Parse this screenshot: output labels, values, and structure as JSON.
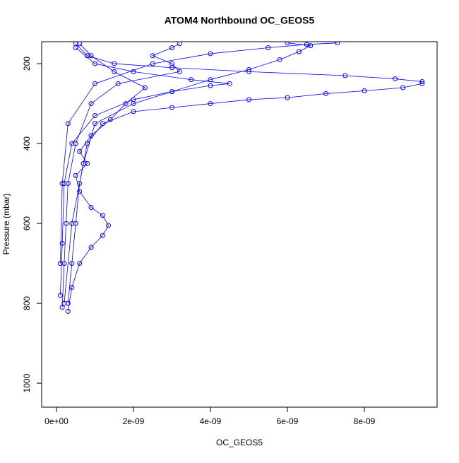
{
  "chart_data": {
    "type": "line",
    "title": "ATOM4 Northbound OC_GEOS5",
    "x_label": "OC_GEOS5",
    "y_label": "Pressure (mbar)",
    "xlim": [
      -3.85e-10,
      9.89e-09
    ],
    "ylim": [
      1060,
      145
    ],
    "xticks": [
      {
        "value": 0,
        "label": "0e+00"
      },
      {
        "value": 2e-09,
        "label": "2e-09"
      },
      {
        "value": 4e-09,
        "label": "4e-09"
      },
      {
        "value": 6e-09,
        "label": "6e-09"
      },
      {
        "value": 8e-09,
        "label": "8e-09"
      }
    ],
    "yticks": [
      200,
      400,
      600,
      800,
      1000
    ],
    "marker": "circle",
    "series": [
      {
        "color": "#0000ff",
        "x": [
          3e-10,
          4e-10,
          5e-10,
          6e-10,
          8e-10,
          1.2e-09,
          2e-09,
          3e-09,
          4e-09,
          5e-09,
          6e-09,
          7e-09,
          8e-09,
          9e-09,
          9.5e-09,
          9.5e-09,
          8.8e-09,
          7.5e-09,
          5e-09,
          3e-09,
          1.5e-09,
          8e-10,
          5e-10
        ],
        "y": [
          800,
          700,
          600,
          500,
          400,
          350,
          320,
          310,
          300,
          290,
          285,
          275,
          268,
          260,
          250,
          245,
          238,
          230,
          220,
          210,
          200,
          180,
          150
        ]
      },
      {
        "color": "#0000ff",
        "x": [
          2e-10,
          4e-10,
          7e-10,
          1e-09,
          2e-09,
          3e-09,
          4e-09,
          5e-09,
          5.8e-09,
          6.3e-09,
          6.6e-09,
          6e-09
        ],
        "y": [
          800,
          600,
          450,
          350,
          300,
          270,
          240,
          215,
          190,
          170,
          155,
          148
        ]
      },
      {
        "color": "#0000ff",
        "x": [
          3e-10,
          4e-10,
          6e-10,
          9e-10,
          1.2e-09,
          1.35e-09,
          1.2e-09,
          9e-10,
          6e-10,
          5e-10,
          8e-10,
          6e-10,
          9e-10,
          1.4e-09,
          1.8e-09,
          2.3e-09,
          1.5e-09,
          9e-10,
          6e-10
        ],
        "y": [
          820,
          760,
          700,
          660,
          630,
          605,
          580,
          560,
          520,
          480,
          450,
          420,
          380,
          340,
          300,
          260,
          220,
          180,
          150
        ]
      },
      {
        "color": "#0000ff",
        "x": [
          1.5e-10,
          2e-10,
          2.5e-10,
          3e-10,
          5e-10,
          9e-10,
          1.6e-09,
          3.2e-09,
          3e-09,
          2.5e-09,
          3e-09,
          3.2e-09
        ],
        "y": [
          810,
          700,
          600,
          500,
          400,
          300,
          250,
          220,
          200,
          180,
          160,
          150
        ]
      },
      {
        "color": "#0000ff",
        "x": [
          1e-10,
          1.5e-10,
          2e-10,
          4e-10,
          1e-09,
          2e-09,
          3e-09,
          4e-09,
          4.5e-09,
          3.5e-09,
          2e-09,
          1e-09,
          5e-10
        ],
        "y": [
          780,
          650,
          500,
          400,
          330,
          290,
          270,
          255,
          250,
          240,
          220,
          200,
          160
        ]
      },
      {
        "color": "#0000ff",
        "x": [
          1e-10,
          1.5e-10,
          3e-10,
          1e-09,
          2.5e-09,
          4e-09,
          5.5e-09,
          6.5e-09,
          7.3e-09
        ],
        "y": [
          700,
          500,
          350,
          250,
          200,
          175,
          160,
          152,
          148
        ]
      }
    ]
  }
}
